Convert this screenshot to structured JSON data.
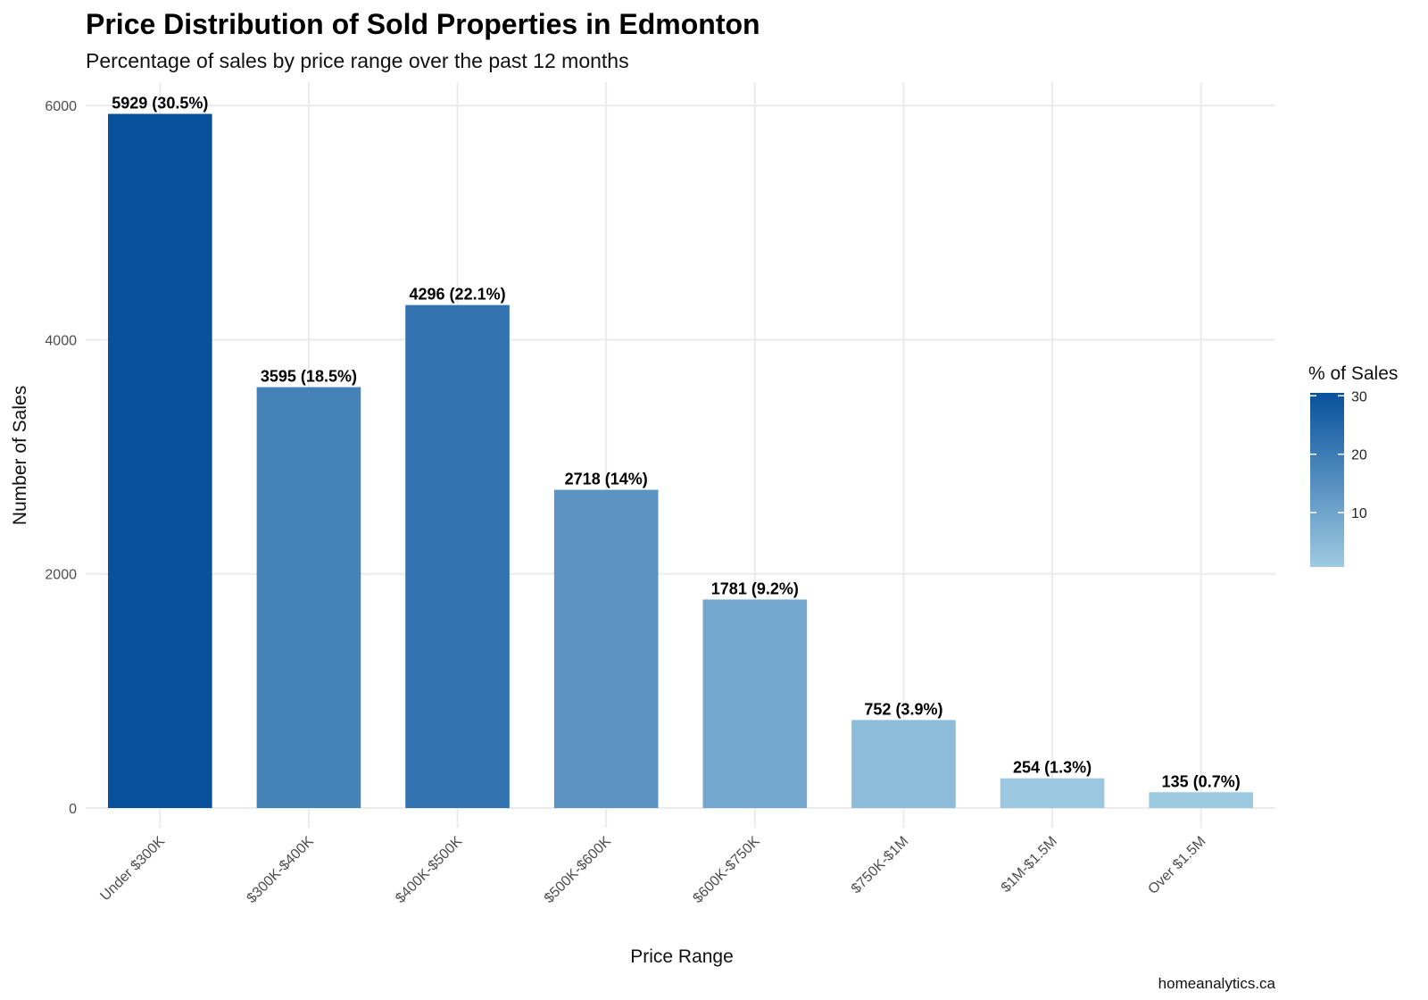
{
  "chart_data": {
    "type": "bar",
    "title": "Price Distribution of Sold Properties in Edmonton",
    "subtitle": "Percentage of sales by price range over the past 12 months",
    "xlabel": "Price Range",
    "ylabel": "Number of Sales",
    "caption": "homeanalytics.ca",
    "categories": [
      "Under $300K",
      "$300K-$400K",
      "$400K-$500K",
      "$500K-$600K",
      "$600K-$750K",
      "$750K-$1M",
      "$1M-$1.5M",
      "Over $1.5M"
    ],
    "values": [
      5929,
      3595,
      4296,
      2718,
      1781,
      752,
      254,
      135
    ],
    "percentages": [
      30.5,
      18.5,
      22.1,
      14,
      9.2,
      3.9,
      1.3,
      0.7
    ],
    "data_labels": [
      "5929 (30.5%)",
      "3595 (18.5%)",
      "4296 (22.1%)",
      "2718 (14%)",
      "1781 (9.2%)",
      "752 (3.9%)",
      "254 (1.3%)",
      "135 (0.7%)"
    ],
    "ylim": [
      0,
      6200
    ],
    "yticks": [
      0,
      2000,
      4000,
      6000
    ],
    "grid": true,
    "legend": {
      "title": "% of Sales",
      "position": "right",
      "ticks": [
        10,
        20,
        30
      ],
      "range": [
        0.7,
        30.5
      ],
      "color_low": "#9ecae1",
      "color_high": "#08519c"
    }
  }
}
